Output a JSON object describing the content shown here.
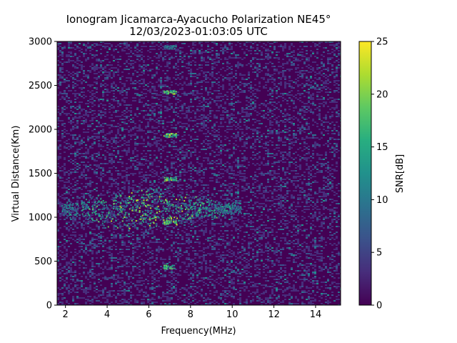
{
  "chart_data": {
    "type": "heatmap",
    "title": "Ionogram Jicamarca-Ayacucho Polarization NE45°",
    "subtitle": "12/03/2023-01:03:05 UTC",
    "xlabel": "Frequency(MHz)",
    "ylabel": "Virtual Distance(Km)",
    "xlim": [
      1.6,
      15.2
    ],
    "ylim": [
      0,
      3000
    ],
    "xticks": [
      2,
      4,
      6,
      8,
      10,
      12,
      14
    ],
    "yticks": [
      0,
      500,
      1000,
      1500,
      2000,
      2500,
      3000
    ],
    "colorbar": {
      "label": "SNR[dB]",
      "colormap": "viridis",
      "range": [
        0,
        25
      ],
      "ticks": [
        0,
        5,
        10,
        15,
        20,
        25
      ]
    },
    "features": [
      {
        "kind": "trace",
        "x_range": [
          1.8,
          10.4
        ],
        "y_center": 1100,
        "peak_snr": 23
      },
      {
        "kind": "echo",
        "x": 7.0,
        "y": 2940,
        "peak_snr": 14
      },
      {
        "kind": "echo",
        "x": 7.0,
        "y": 2430,
        "peak_snr": 22
      },
      {
        "kind": "echo",
        "x": 7.0,
        "y": 1940,
        "peak_snr": 24
      },
      {
        "kind": "echo",
        "x": 7.0,
        "y": 1440,
        "peak_snr": 22
      },
      {
        "kind": "echo",
        "x": 7.0,
        "y": 950,
        "peak_snr": 24
      },
      {
        "kind": "echo",
        "x": 7.0,
        "y": 440,
        "peak_snr": 22
      }
    ],
    "grid": false,
    "legend": "none"
  }
}
